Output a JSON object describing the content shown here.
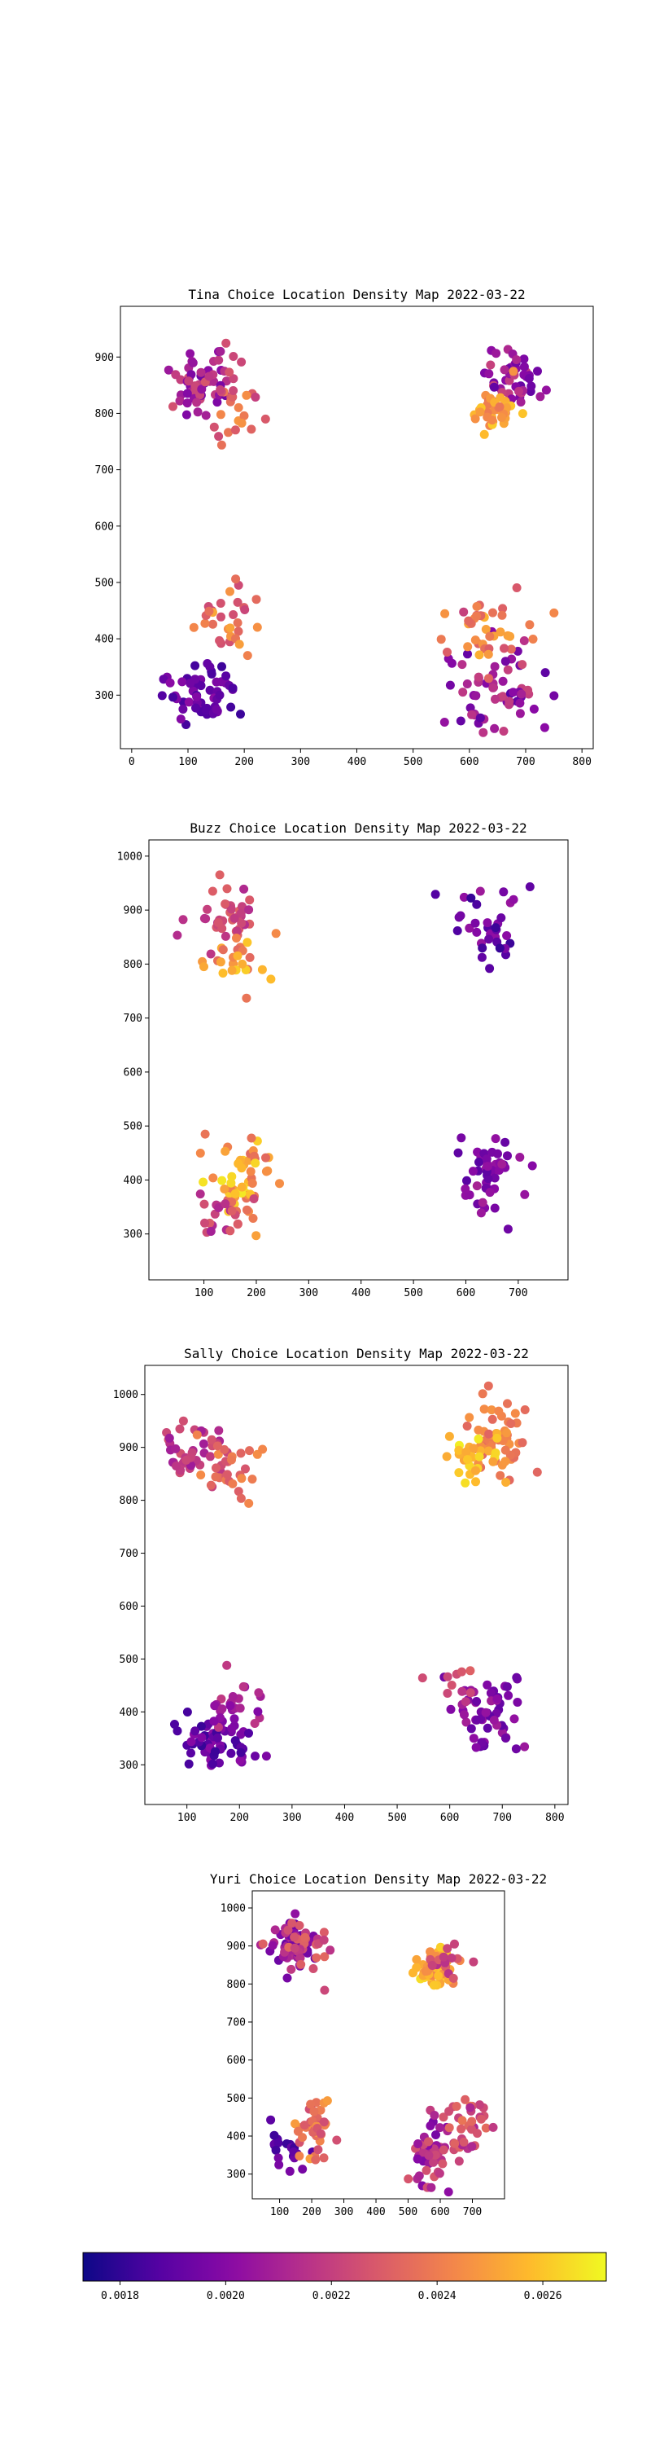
{
  "chart_data": [
    {
      "type": "scatter",
      "title": "Tina Choice Location Density Map 2022-03-22",
      "xlim": [
        -20,
        820
      ],
      "ylim": [
        205,
        990
      ],
      "xticks": [
        0,
        100,
        200,
        300,
        400,
        500,
        600,
        700,
        800
      ],
      "yticks": [
        300,
        400,
        500,
        600,
        700,
        800,
        900
      ],
      "clusters": [
        {
          "cx": 120,
          "cy": 850,
          "sx": 28,
          "sy": 35,
          "n": 55,
          "dmin": 0.00193,
          "dmax": 0.00228
        },
        {
          "cx": 190,
          "cy": 815,
          "sx": 25,
          "sy": 30,
          "n": 25,
          "dmin": 0.0022,
          "dmax": 0.0025
        },
        {
          "cx": 680,
          "cy": 860,
          "sx": 30,
          "sy": 30,
          "n": 50,
          "dmin": 0.0019,
          "dmax": 0.00222
        },
        {
          "cx": 640,
          "cy": 805,
          "sx": 22,
          "sy": 25,
          "n": 40,
          "dmin": 0.00238,
          "dmax": 0.00262
        },
        {
          "cx": 120,
          "cy": 300,
          "sx": 28,
          "sy": 25,
          "n": 60,
          "dmin": 0.00181,
          "dmax": 0.00202
        },
        {
          "cx": 180,
          "cy": 420,
          "sx": 28,
          "sy": 35,
          "n": 30,
          "dmin": 0.00222,
          "dmax": 0.00252
        },
        {
          "cx": 650,
          "cy": 310,
          "sx": 40,
          "sy": 35,
          "n": 60,
          "dmin": 0.00188,
          "dmax": 0.00222
        },
        {
          "cx": 630,
          "cy": 420,
          "sx": 40,
          "sy": 35,
          "n": 40,
          "dmin": 0.0022,
          "dmax": 0.00255
        }
      ]
    },
    {
      "type": "scatter",
      "title": "Buzz Choice Location Density Map 2022-03-22",
      "xlim": [
        -5,
        795
      ],
      "ylim": [
        215,
        1030
      ],
      "xticks": [
        100,
        200,
        300,
        400,
        500,
        600,
        700
      ],
      "yticks": [
        300,
        400,
        500,
        600,
        700,
        800,
        900,
        1000
      ],
      "clusters": [
        {
          "cx": 140,
          "cy": 890,
          "sx": 30,
          "sy": 35,
          "n": 40,
          "dmin": 0.00212,
          "dmax": 0.00232
        },
        {
          "cx": 160,
          "cy": 820,
          "sx": 30,
          "sy": 30,
          "n": 25,
          "dmin": 0.00232,
          "dmax": 0.00262
        },
        {
          "cx": 630,
          "cy": 880,
          "sx": 35,
          "sy": 35,
          "n": 35,
          "dmin": 0.0018,
          "dmax": 0.00208
        },
        {
          "cx": 170,
          "cy": 410,
          "sx": 35,
          "sy": 40,
          "n": 55,
          "dmin": 0.00232,
          "dmax": 0.00268
        },
        {
          "cx": 130,
          "cy": 340,
          "sx": 30,
          "sy": 30,
          "n": 20,
          "dmin": 0.00208,
          "dmax": 0.00232
        },
        {
          "cx": 640,
          "cy": 400,
          "sx": 30,
          "sy": 40,
          "n": 50,
          "dmin": 0.00187,
          "dmax": 0.0021
        }
      ]
    },
    {
      "type": "scatter",
      "title": "Sally Choice Location Density Map 2022-03-22",
      "xlim": [
        20,
        825
      ],
      "ylim": [
        225,
        1055
      ],
      "xticks": [
        100,
        200,
        300,
        400,
        500,
        600,
        700,
        800
      ],
      "yticks": [
        300,
        400,
        500,
        600,
        700,
        800,
        900,
        1000
      ],
      "clusters": [
        {
          "cx": 120,
          "cy": 890,
          "sx": 30,
          "sy": 30,
          "n": 45,
          "dmin": 0.00206,
          "dmax": 0.00226
        },
        {
          "cx": 180,
          "cy": 860,
          "sx": 30,
          "sy": 30,
          "n": 30,
          "dmin": 0.00226,
          "dmax": 0.00245
        },
        {
          "cx": 690,
          "cy": 920,
          "sx": 30,
          "sy": 35,
          "n": 60,
          "dmin": 0.00232,
          "dmax": 0.0025
        },
        {
          "cx": 640,
          "cy": 880,
          "sx": 35,
          "sy": 30,
          "n": 30,
          "dmin": 0.0025,
          "dmax": 0.0027
        },
        {
          "cx": 160,
          "cy": 340,
          "sx": 40,
          "sy": 25,
          "n": 60,
          "dmin": 0.00181,
          "dmax": 0.00202
        },
        {
          "cx": 190,
          "cy": 420,
          "sx": 30,
          "sy": 30,
          "n": 25,
          "dmin": 0.00198,
          "dmax": 0.00218
        },
        {
          "cx": 670,
          "cy": 390,
          "sx": 35,
          "sy": 35,
          "n": 55,
          "dmin": 0.0019,
          "dmax": 0.0021
        },
        {
          "cx": 620,
          "cy": 460,
          "sx": 30,
          "sy": 20,
          "n": 10,
          "dmin": 0.00212,
          "dmax": 0.00232
        }
      ]
    },
    {
      "type": "scatter",
      "title": "Yuri Choice Location Density Map 2022-03-22",
      "xlim": [
        15,
        800
      ],
      "ylim": [
        235,
        1045
      ],
      "xticks": [
        100,
        200,
        300,
        400,
        500,
        600,
        700
      ],
      "yticks": [
        300,
        400,
        500,
        600,
        700,
        800,
        900,
        1000
      ],
      "clusters": [
        {
          "cx": 140,
          "cy": 910,
          "sx": 35,
          "sy": 30,
          "n": 60,
          "dmin": 0.00192,
          "dmax": 0.00214
        },
        {
          "cx": 180,
          "cy": 900,
          "sx": 35,
          "sy": 35,
          "n": 30,
          "dmin": 0.00214,
          "dmax": 0.00234
        },
        {
          "cx": 580,
          "cy": 840,
          "sx": 25,
          "sy": 30,
          "n": 55,
          "dmin": 0.00242,
          "dmax": 0.00266
        },
        {
          "cx": 620,
          "cy": 860,
          "sx": 25,
          "sy": 30,
          "n": 15,
          "dmin": 0.00214,
          "dmax": 0.00232
        },
        {
          "cx": 120,
          "cy": 370,
          "sx": 35,
          "sy": 35,
          "n": 20,
          "dmin": 0.00182,
          "dmax": 0.00198
        },
        {
          "cx": 210,
          "cy": 430,
          "sx": 25,
          "sy": 35,
          "n": 45,
          "dmin": 0.00224,
          "dmax": 0.0025
        },
        {
          "cx": 570,
          "cy": 350,
          "sx": 30,
          "sy": 40,
          "n": 55,
          "dmin": 0.00196,
          "dmax": 0.00228
        },
        {
          "cx": 660,
          "cy": 420,
          "sx": 40,
          "sy": 40,
          "n": 40,
          "dmin": 0.0021,
          "dmax": 0.0024
        }
      ]
    }
  ],
  "colorbar": {
    "colormap": "plasma",
    "vmin": 0.00173,
    "vmax": 0.00272,
    "ticks": [
      0.0018,
      0.002,
      0.0022,
      0.0024,
      0.0026
    ],
    "tick_labels": [
      "0.0018",
      "0.0020",
      "0.0022",
      "0.0024",
      "0.0026"
    ]
  }
}
